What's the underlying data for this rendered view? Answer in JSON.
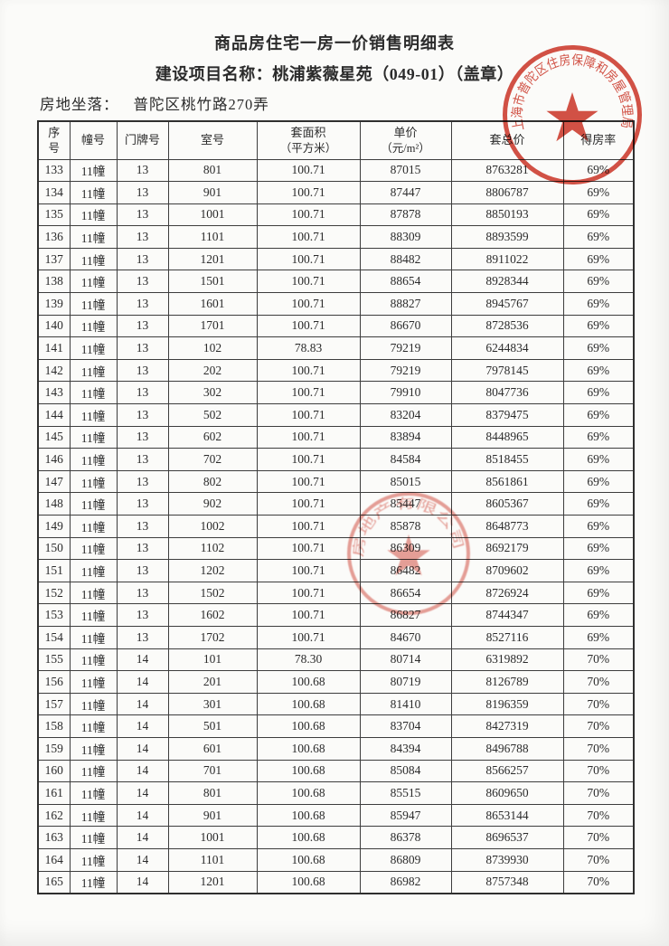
{
  "doc": {
    "title": "商品房住宅一房一价销售明细表",
    "subtitle_label": "建设项目名称：",
    "subtitle_value": "桃浦紫薇星苑（049-01）",
    "subtitle_seal_note": "（盖章）",
    "location_label": "房地坐落：",
    "location_value": "普陀区桃竹路270弄"
  },
  "table": {
    "headers": [
      {
        "line1": "序",
        "line2": "号"
      },
      {
        "line1": "幢号",
        "line2": ""
      },
      {
        "line1": "门牌号",
        "line2": ""
      },
      {
        "line1": "室号",
        "line2": ""
      },
      {
        "line1": "套面积",
        "line2": "（平方米）"
      },
      {
        "line1": "单价",
        "line2": "（元/m²）"
      },
      {
        "line1": "套总价",
        "line2": ""
      },
      {
        "line1": "得房率",
        "line2": ""
      }
    ],
    "rows": [
      [
        "133",
        "11幢",
        "13",
        "801",
        "100.71",
        "87015",
        "8763281",
        "69%"
      ],
      [
        "134",
        "11幢",
        "13",
        "901",
        "100.71",
        "87447",
        "8806787",
        "69%"
      ],
      [
        "135",
        "11幢",
        "13",
        "1001",
        "100.71",
        "87878",
        "8850193",
        "69%"
      ],
      [
        "136",
        "11幢",
        "13",
        "1101",
        "100.71",
        "88309",
        "8893599",
        "69%"
      ],
      [
        "137",
        "11幢",
        "13",
        "1201",
        "100.71",
        "88482",
        "8911022",
        "69%"
      ],
      [
        "138",
        "11幢",
        "13",
        "1501",
        "100.71",
        "88654",
        "8928344",
        "69%"
      ],
      [
        "139",
        "11幢",
        "13",
        "1601",
        "100.71",
        "88827",
        "8945767",
        "69%"
      ],
      [
        "140",
        "11幢",
        "13",
        "1701",
        "100.71",
        "86670",
        "8728536",
        "69%"
      ],
      [
        "141",
        "11幢",
        "13",
        "102",
        "78.83",
        "79219",
        "6244834",
        "69%"
      ],
      [
        "142",
        "11幢",
        "13",
        "202",
        "100.71",
        "79219",
        "7978145",
        "69%"
      ],
      [
        "143",
        "11幢",
        "13",
        "302",
        "100.71",
        "79910",
        "8047736",
        "69%"
      ],
      [
        "144",
        "11幢",
        "13",
        "502",
        "100.71",
        "83204",
        "8379475",
        "69%"
      ],
      [
        "145",
        "11幢",
        "13",
        "602",
        "100.71",
        "83894",
        "8448965",
        "69%"
      ],
      [
        "146",
        "11幢",
        "13",
        "702",
        "100.71",
        "84584",
        "8518455",
        "69%"
      ],
      [
        "147",
        "11幢",
        "13",
        "802",
        "100.71",
        "85015",
        "8561861",
        "69%"
      ],
      [
        "148",
        "11幢",
        "13",
        "902",
        "100.71",
        "85447",
        "8605367",
        "69%"
      ],
      [
        "149",
        "11幢",
        "13",
        "1002",
        "100.71",
        "85878",
        "8648773",
        "69%"
      ],
      [
        "150",
        "11幢",
        "13",
        "1102",
        "100.71",
        "86309",
        "8692179",
        "69%"
      ],
      [
        "151",
        "11幢",
        "13",
        "1202",
        "100.71",
        "86482",
        "8709602",
        "69%"
      ],
      [
        "152",
        "11幢",
        "13",
        "1502",
        "100.71",
        "86654",
        "8726924",
        "69%"
      ],
      [
        "153",
        "11幢",
        "13",
        "1602",
        "100.71",
        "86827",
        "8744347",
        "69%"
      ],
      [
        "154",
        "11幢",
        "13",
        "1702",
        "100.71",
        "84670",
        "8527116",
        "69%"
      ],
      [
        "155",
        "11幢",
        "14",
        "101",
        "78.30",
        "80714",
        "6319892",
        "70%"
      ],
      [
        "156",
        "11幢",
        "14",
        "201",
        "100.68",
        "80719",
        "8126789",
        "70%"
      ],
      [
        "157",
        "11幢",
        "14",
        "301",
        "100.68",
        "81410",
        "8196359",
        "70%"
      ],
      [
        "158",
        "11幢",
        "14",
        "501",
        "100.68",
        "83704",
        "8427319",
        "70%"
      ],
      [
        "159",
        "11幢",
        "14",
        "601",
        "100.68",
        "84394",
        "8496788",
        "70%"
      ],
      [
        "160",
        "11幢",
        "14",
        "701",
        "100.68",
        "85084",
        "8566257",
        "70%"
      ],
      [
        "161",
        "11幢",
        "14",
        "801",
        "100.68",
        "85515",
        "8609650",
        "70%"
      ],
      [
        "162",
        "11幢",
        "14",
        "901",
        "100.68",
        "85947",
        "8653144",
        "70%"
      ],
      [
        "163",
        "11幢",
        "14",
        "1001",
        "100.68",
        "86378",
        "8696537",
        "70%"
      ],
      [
        "164",
        "11幢",
        "14",
        "1101",
        "100.68",
        "86809",
        "8739930",
        "70%"
      ],
      [
        "165",
        "11幢",
        "14",
        "1201",
        "100.68",
        "86982",
        "8757348",
        "70%"
      ]
    ]
  },
  "stamps": {
    "bureau_seal_text": "上海市普陀区住房保障和房屋管理局",
    "company_seal_text": "房地产有限公司",
    "seal_color": "#cf3a2c"
  }
}
